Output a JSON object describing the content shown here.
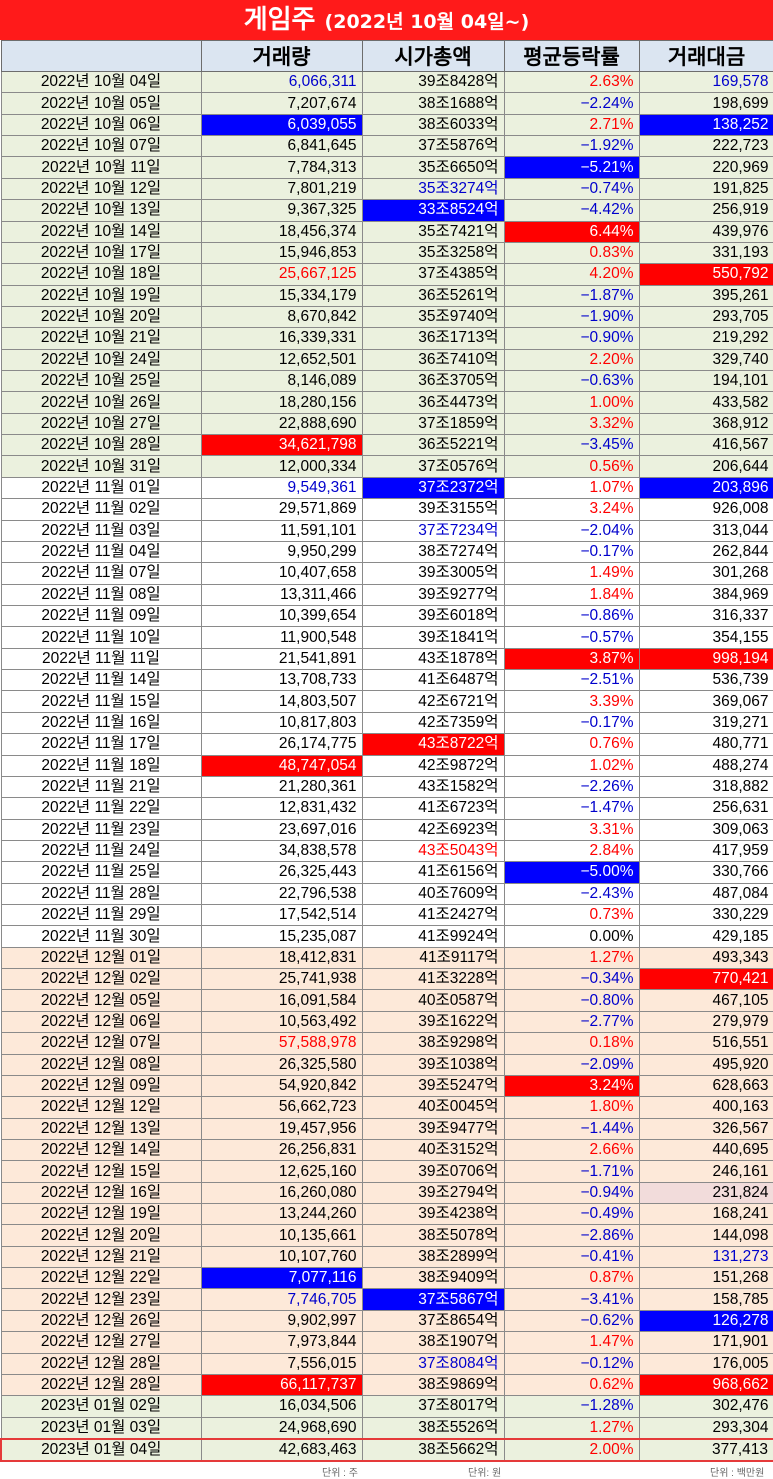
{
  "title": {
    "main": "게임주",
    "sub": "(2022년 10월 04일~)"
  },
  "headers": [
    "",
    "거래량",
    "시가총액",
    "평균등락률",
    "거래대금"
  ],
  "units": {
    "volume": "단위 : 주",
    "cap": "단위: 원",
    "amount": "단위 : 백만원"
  },
  "colors": {
    "title_bg": "#ff1a1a",
    "header_bg": "#dbe5f1",
    "up": "#ff0000",
    "down": "#0000cc",
    "highlight_blue": "#0000ff",
    "highlight_red": "#ff0000"
  },
  "rows": [
    {
      "date": "2022년 10월 04일",
      "volume": "6,066,311",
      "cap": "39조8428억",
      "change": "2.63%",
      "amount": "169,578",
      "g": "g1",
      "s": [
        "",
        "blue",
        "",
        "red",
        "blue"
      ]
    },
    {
      "date": "2022년 10월 05일",
      "volume": "7,207,674",
      "cap": "38조1688억",
      "change": "−2.24%",
      "amount": "198,699",
      "g": "g1",
      "s": [
        "",
        "",
        "",
        "blue",
        ""
      ]
    },
    {
      "date": "2022년 10월 06일",
      "volume": "6,039,055",
      "cap": "38조6033억",
      "change": "2.71%",
      "amount": "138,252",
      "g": "g1",
      "s": [
        "",
        "hb",
        "",
        "red",
        "hb"
      ]
    },
    {
      "date": "2022년 10월 07일",
      "volume": "6,841,645",
      "cap": "37조5876억",
      "change": "−1.92%",
      "amount": "222,723",
      "g": "g1",
      "s": [
        "",
        "",
        "",
        "blue",
        ""
      ]
    },
    {
      "date": "2022년 10월 11일",
      "volume": "7,784,313",
      "cap": "35조6650억",
      "change": "−5.21%",
      "amount": "220,969",
      "g": "g1",
      "s": [
        "",
        "",
        "",
        "hb",
        ""
      ]
    },
    {
      "date": "2022년 10월 12일",
      "volume": "7,801,219",
      "cap": "35조3274억",
      "change": "−0.74%",
      "amount": "191,825",
      "g": "g1",
      "s": [
        "",
        "",
        "blue",
        "blue",
        ""
      ]
    },
    {
      "date": "2022년 10월 13일",
      "volume": "9,367,325",
      "cap": "33조8524억",
      "change": "−4.42%",
      "amount": "256,919",
      "g": "g1",
      "s": [
        "",
        "",
        "hb",
        "blue",
        ""
      ]
    },
    {
      "date": "2022년 10월 14일",
      "volume": "18,456,374",
      "cap": "35조7421억",
      "change": "6.44%",
      "amount": "439,976",
      "g": "g1",
      "s": [
        "",
        "",
        "",
        "hr",
        ""
      ]
    },
    {
      "date": "2022년 10월 17일",
      "volume": "15,946,853",
      "cap": "35조3258억",
      "change": "0.83%",
      "amount": "331,193",
      "g": "g1",
      "s": [
        "",
        "",
        "",
        "red",
        ""
      ]
    },
    {
      "date": "2022년 10월 18일",
      "volume": "25,667,125",
      "cap": "37조4385억",
      "change": "4.20%",
      "amount": "550,792",
      "g": "g1",
      "s": [
        "",
        "red",
        "",
        "red",
        "hr"
      ]
    },
    {
      "date": "2022년 10월 19일",
      "volume": "15,334,179",
      "cap": "36조5261억",
      "change": "−1.87%",
      "amount": "395,261",
      "g": "g1",
      "s": [
        "",
        "",
        "",
        "blue",
        ""
      ]
    },
    {
      "date": "2022년 10월 20일",
      "volume": "8,670,842",
      "cap": "35조9740억",
      "change": "−1.90%",
      "amount": "293,705",
      "g": "g1",
      "s": [
        "",
        "",
        "",
        "blue",
        ""
      ]
    },
    {
      "date": "2022년 10월 21일",
      "volume": "16,339,331",
      "cap": "36조1713억",
      "change": "−0.90%",
      "amount": "219,292",
      "g": "g1",
      "s": [
        "",
        "",
        "",
        "blue",
        ""
      ]
    },
    {
      "date": "2022년 10월 24일",
      "volume": "12,652,501",
      "cap": "36조7410억",
      "change": "2.20%",
      "amount": "329,740",
      "g": "g1",
      "s": [
        "",
        "",
        "",
        "red",
        ""
      ]
    },
    {
      "date": "2022년 10월 25일",
      "volume": "8,146,089",
      "cap": "36조3705억",
      "change": "−0.63%",
      "amount": "194,101",
      "g": "g1",
      "s": [
        "",
        "",
        "",
        "blue",
        ""
      ]
    },
    {
      "date": "2022년 10월 26일",
      "volume": "18,280,156",
      "cap": "36조4473억",
      "change": "1.00%",
      "amount": "433,582",
      "g": "g1",
      "s": [
        "",
        "",
        "",
        "red",
        ""
      ]
    },
    {
      "date": "2022년 10월 27일",
      "volume": "22,888,690",
      "cap": "37조1859억",
      "change": "3.32%",
      "amount": "368,912",
      "g": "g1",
      "s": [
        "",
        "",
        "",
        "red",
        ""
      ]
    },
    {
      "date": "2022년 10월 28일",
      "volume": "34,621,798",
      "cap": "36조5221억",
      "change": "−3.45%",
      "amount": "416,567",
      "g": "g1",
      "s": [
        "",
        "hr",
        "",
        "blue",
        ""
      ]
    },
    {
      "date": "2022년 10월 31일",
      "volume": "12,000,334",
      "cap": "37조0576억",
      "change": "0.56%",
      "amount": "206,644",
      "g": "g1",
      "s": [
        "",
        "",
        "",
        "red",
        ""
      ]
    },
    {
      "date": "2022년 11월 01일",
      "volume": "9,549,361",
      "cap": "37조2372억",
      "change": "1.07%",
      "amount": "203,896",
      "g": "g2",
      "s": [
        "",
        "blue",
        "hb",
        "red",
        "hb"
      ]
    },
    {
      "date": "2022년 11월 02일",
      "volume": "29,571,869",
      "cap": "39조3155억",
      "change": "3.24%",
      "amount": "926,008",
      "g": "g2",
      "s": [
        "",
        "",
        "",
        "red",
        ""
      ]
    },
    {
      "date": "2022년 11월 03일",
      "volume": "11,591,101",
      "cap": "37조7234억",
      "change": "−2.04%",
      "amount": "313,044",
      "g": "g2",
      "s": [
        "",
        "",
        "blue",
        "blue",
        ""
      ]
    },
    {
      "date": "2022년 11월 04일",
      "volume": "9,950,299",
      "cap": "38조7274억",
      "change": "−0.17%",
      "amount": "262,844",
      "g": "g2",
      "s": [
        "",
        "",
        "",
        "blue",
        ""
      ]
    },
    {
      "date": "2022년 11월 07일",
      "volume": "10,407,658",
      "cap": "39조3005억",
      "change": "1.49%",
      "amount": "301,268",
      "g": "g2",
      "s": [
        "",
        "",
        "",
        "red",
        ""
      ]
    },
    {
      "date": "2022년 11월 08일",
      "volume": "13,311,466",
      "cap": "39조9277억",
      "change": "1.84%",
      "amount": "384,969",
      "g": "g2",
      "s": [
        "",
        "",
        "",
        "red",
        ""
      ]
    },
    {
      "date": "2022년 11월 09일",
      "volume": "10,399,654",
      "cap": "39조6018억",
      "change": "−0.86%",
      "amount": "316,337",
      "g": "g2",
      "s": [
        "",
        "",
        "",
        "blue",
        ""
      ]
    },
    {
      "date": "2022년 11월 10일",
      "volume": "11,900,548",
      "cap": "39조1841억",
      "change": "−0.57%",
      "amount": "354,155",
      "g": "g2",
      "s": [
        "",
        "",
        "",
        "blue",
        ""
      ]
    },
    {
      "date": "2022년 11월 11일",
      "volume": "21,541,891",
      "cap": "43조1878억",
      "change": "3.87%",
      "amount": "998,194",
      "g": "g2",
      "s": [
        "",
        "",
        "",
        "hr",
        "hr"
      ]
    },
    {
      "date": "2022년 11월 14일",
      "volume": "13,708,733",
      "cap": "41조6487억",
      "change": "−2.51%",
      "amount": "536,739",
      "g": "g2",
      "s": [
        "",
        "",
        "",
        "blue",
        ""
      ]
    },
    {
      "date": "2022년 11월 15일",
      "volume": "14,803,507",
      "cap": "42조6721억",
      "change": "3.39%",
      "amount": "369,067",
      "g": "g2",
      "s": [
        "",
        "",
        "",
        "red",
        ""
      ]
    },
    {
      "date": "2022년 11월 16일",
      "volume": "10,817,803",
      "cap": "42조7359억",
      "change": "−0.17%",
      "amount": "319,271",
      "g": "g2",
      "s": [
        "",
        "",
        "",
        "blue",
        ""
      ]
    },
    {
      "date": "2022년 11월 17일",
      "volume": "26,174,775",
      "cap": "43조8722억",
      "change": "0.76%",
      "amount": "480,771",
      "g": "g2",
      "s": [
        "",
        "",
        "hr",
        "red",
        ""
      ]
    },
    {
      "date": "2022년 11월 18일",
      "volume": "48,747,054",
      "cap": "42조9872억",
      "change": "1.02%",
      "amount": "488,274",
      "g": "g2",
      "s": [
        "",
        "hr",
        "",
        "red",
        ""
      ]
    },
    {
      "date": "2022년 11월 21일",
      "volume": "21,280,361",
      "cap": "43조1582억",
      "change": "−2.26%",
      "amount": "318,882",
      "g": "g2",
      "s": [
        "",
        "",
        "",
        "blue",
        ""
      ]
    },
    {
      "date": "2022년 11월 22일",
      "volume": "12,831,432",
      "cap": "41조6723억",
      "change": "−1.47%",
      "amount": "256,631",
      "g": "g2",
      "s": [
        "",
        "",
        "",
        "blue",
        ""
      ]
    },
    {
      "date": "2022년 11월 23일",
      "volume": "23,697,016",
      "cap": "42조6923억",
      "change": "3.31%",
      "amount": "309,063",
      "g": "g2",
      "s": [
        "",
        "",
        "",
        "red",
        ""
      ]
    },
    {
      "date": "2022년 11월 24일",
      "volume": "34,838,578",
      "cap": "43조5043억",
      "change": "2.84%",
      "amount": "417,959",
      "g": "g2",
      "s": [
        "",
        "",
        "red",
        "red",
        ""
      ]
    },
    {
      "date": "2022년 11월 25일",
      "volume": "26,325,443",
      "cap": "41조6156억",
      "change": "−5.00%",
      "amount": "330,766",
      "g": "g2",
      "s": [
        "",
        "",
        "",
        "hb",
        ""
      ]
    },
    {
      "date": "2022년 11월 28일",
      "volume": "22,796,538",
      "cap": "40조7609억",
      "change": "−2.43%",
      "amount": "487,084",
      "g": "g2",
      "s": [
        "",
        "",
        "",
        "blue",
        ""
      ]
    },
    {
      "date": "2022년 11월 29일",
      "volume": "17,542,514",
      "cap": "41조2427억",
      "change": "0.73%",
      "amount": "330,229",
      "g": "g2",
      "s": [
        "",
        "",
        "",
        "red",
        ""
      ]
    },
    {
      "date": "2022년 11월 30일",
      "volume": "15,235,087",
      "cap": "41조9924억",
      "change": "0.00%",
      "amount": "429,185",
      "g": "g2",
      "s": [
        "",
        "",
        "",
        "",
        ""
      ]
    },
    {
      "date": "2022년 12월 01일",
      "volume": "18,412,831",
      "cap": "41조9117억",
      "change": "1.27%",
      "amount": "493,343",
      "g": "g3",
      "s": [
        "",
        "",
        "",
        "red",
        ""
      ]
    },
    {
      "date": "2022년 12월 02일",
      "volume": "25,741,938",
      "cap": "41조3228억",
      "change": "−0.34%",
      "amount": "770,421",
      "g": "g3",
      "s": [
        "",
        "",
        "",
        "blue",
        "hr"
      ]
    },
    {
      "date": "2022년 12월 05일",
      "volume": "16,091,584",
      "cap": "40조0587억",
      "change": "−0.80%",
      "amount": "467,105",
      "g": "g3",
      "s": [
        "",
        "",
        "",
        "blue",
        ""
      ]
    },
    {
      "date": "2022년 12월 06일",
      "volume": "10,563,492",
      "cap": "39조1622억",
      "change": "−2.77%",
      "amount": "279,979",
      "g": "g3",
      "s": [
        "",
        "",
        "",
        "blue",
        ""
      ]
    },
    {
      "date": "2022년 12월 07일",
      "volume": "57,588,978",
      "cap": "38조9298억",
      "change": "0.18%",
      "amount": "516,551",
      "g": "g3",
      "s": [
        "",
        "red",
        "",
        "red",
        ""
      ]
    },
    {
      "date": "2022년 12월 08일",
      "volume": "26,325,580",
      "cap": "39조1038억",
      "change": "−2.09%",
      "amount": "495,920",
      "g": "g3",
      "s": [
        "",
        "",
        "",
        "blue",
        ""
      ]
    },
    {
      "date": "2022년 12월 09일",
      "volume": "54,920,842",
      "cap": "39조5247억",
      "change": "3.24%",
      "amount": "628,663",
      "g": "g3",
      "s": [
        "",
        "",
        "",
        "hr",
        ""
      ]
    },
    {
      "date": "2022년 12월 12일",
      "volume": "56,662,723",
      "cap": "40조0045억",
      "change": "1.80%",
      "amount": "400,163",
      "g": "g3",
      "s": [
        "",
        "",
        "",
        "red",
        ""
      ]
    },
    {
      "date": "2022년 12월 13일",
      "volume": "19,457,956",
      "cap": "39조9477억",
      "change": "−1.44%",
      "amount": "326,567",
      "g": "g3",
      "s": [
        "",
        "",
        "",
        "blue",
        ""
      ]
    },
    {
      "date": "2022년 12월 14일",
      "volume": "26,256,831",
      "cap": "40조3152억",
      "change": "2.66%",
      "amount": "440,695",
      "g": "g3",
      "s": [
        "",
        "",
        "",
        "red",
        ""
      ]
    },
    {
      "date": "2022년 12월 15일",
      "volume": "12,625,160",
      "cap": "39조0706억",
      "change": "−1.71%",
      "amount": "246,161",
      "g": "g3",
      "s": [
        "",
        "",
        "",
        "blue",
        ""
      ]
    },
    {
      "date": "2022년 12월 16일",
      "volume": "16,260,080",
      "cap": "39조2794억",
      "change": "−0.94%",
      "amount": "231,824",
      "g": "g3",
      "s": [
        "",
        "",
        "",
        "blue",
        "hp"
      ]
    },
    {
      "date": "2022년 12월 19일",
      "volume": "13,244,260",
      "cap": "39조4238억",
      "change": "−0.49%",
      "amount": "168,241",
      "g": "g3",
      "s": [
        "",
        "",
        "",
        "blue",
        ""
      ]
    },
    {
      "date": "2022년 12월 20일",
      "volume": "10,135,661",
      "cap": "38조5078억",
      "change": "−2.86%",
      "amount": "144,098",
      "g": "g3",
      "s": [
        "",
        "",
        "",
        "blue",
        ""
      ]
    },
    {
      "date": "2022년 12월 21일",
      "volume": "10,107,760",
      "cap": "38조2899억",
      "change": "−0.41%",
      "amount": "131,273",
      "g": "g3",
      "s": [
        "",
        "",
        "",
        "blue",
        "blue"
      ]
    },
    {
      "date": "2022년 12월 22일",
      "volume": "7,077,116",
      "cap": "38조9409억",
      "change": "0.87%",
      "amount": "151,268",
      "g": "g3",
      "s": [
        "",
        "hb",
        "",
        "red",
        ""
      ]
    },
    {
      "date": "2022년 12월 23일",
      "volume": "7,746,705",
      "cap": "37조5867억",
      "change": "−3.41%",
      "amount": "158,785",
      "g": "g3",
      "s": [
        "",
        "blue",
        "hb",
        "blue",
        ""
      ]
    },
    {
      "date": "2022년 12월 26일",
      "volume": "9,902,997",
      "cap": "37조8654억",
      "change": "−0.62%",
      "amount": "126,278",
      "g": "g3",
      "s": [
        "",
        "",
        "",
        "blue",
        "hb"
      ]
    },
    {
      "date": "2022년 12월 27일",
      "volume": "7,973,844",
      "cap": "38조1907억",
      "change": "1.47%",
      "amount": "171,901",
      "g": "g3",
      "s": [
        "",
        "",
        "",
        "red",
        ""
      ]
    },
    {
      "date": "2022년 12월 28일",
      "volume": "7,556,015",
      "cap": "37조8084억",
      "change": "−0.12%",
      "amount": "176,005",
      "g": "g3",
      "s": [
        "",
        "",
        "blue",
        "blue",
        ""
      ]
    },
    {
      "date": "2022년 12월 28일",
      "volume": "66,117,737",
      "cap": "38조9869억",
      "change": "0.62%",
      "amount": "968,662",
      "g": "g3",
      "s": [
        "",
        "hr",
        "",
        "red",
        "hr"
      ]
    },
    {
      "date": "2023년 01월 02일",
      "volume": "16,034,506",
      "cap": "37조8017억",
      "change": "−1.28%",
      "amount": "302,476",
      "g": "g1",
      "s": [
        "",
        "",
        "",
        "blue",
        ""
      ]
    },
    {
      "date": "2023년 01월 03일",
      "volume": "24,968,690",
      "cap": "38조5526억",
      "change": "1.27%",
      "amount": "293,304",
      "g": "g1",
      "s": [
        "",
        "",
        "",
        "red",
        ""
      ]
    },
    {
      "date": "2023년 01월 04일",
      "volume": "42,683,463",
      "cap": "38조5662억",
      "change": "2.00%",
      "amount": "377,413",
      "g": "g1 last",
      "s": [
        "",
        "",
        "",
        "red",
        ""
      ]
    }
  ]
}
